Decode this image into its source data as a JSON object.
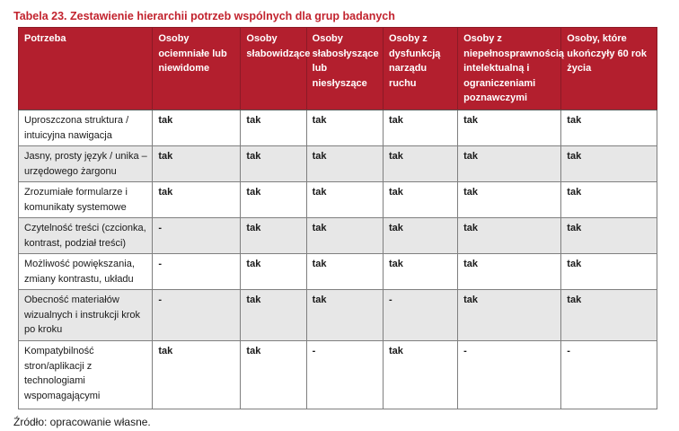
{
  "title": "Tabela 23. Zestawienie hierarchii potrzeb wspólnych dla grup badanych",
  "source": "Źródło: opracowanie własne.",
  "colors": {
    "title_red": "#c2232e",
    "header_bg": "#b31f2e",
    "header_divider": "#8c1a26",
    "row_alt_bg": "#e7e7e7",
    "cell_border": "#7f7f7f"
  },
  "table": {
    "headers": [
      "Potrzeba",
      "Osoby ociemniałe lub niewidome",
      "Osoby słabowidzące",
      "Osoby słabosłyszące lub niesłyszące",
      "Osoby z dysfunkcją narządu ruchu",
      "Osoby z niepełnosprawnością intelektualną i ograniczeniami poznawczymi",
      "Osoby, które ukończyły 60 rok życia"
    ],
    "rows": [
      {
        "need": "Uproszczona struktura / intuicyjna nawigacja",
        "values": [
          "tak",
          "tak",
          "tak",
          "tak",
          "tak",
          "tak"
        ]
      },
      {
        "need": "Jasny, prosty język / unika – urzędowego żargonu",
        "values": [
          "tak",
          "tak",
          "tak",
          "tak",
          "tak",
          "tak"
        ]
      },
      {
        "need": "Zrozumiałe formularze i komunikaty systemowe",
        "values": [
          "tak",
          "tak",
          "tak",
          "tak",
          "tak",
          "tak"
        ]
      },
      {
        "need": "Czytelność treści (czcionka, kontrast, podział treści)",
        "values": [
          "-",
          "tak",
          "tak",
          "tak",
          "tak",
          "tak"
        ]
      },
      {
        "need": "Możliwość powiększania, zmiany kontrastu, układu",
        "values": [
          "-",
          "tak",
          "tak",
          "tak",
          "tak",
          "tak"
        ]
      },
      {
        "need": "Obecność materiałów wizualnych i instrukcji krok po kroku",
        "values": [
          "-",
          "tak",
          "tak",
          "-",
          "tak",
          "tak"
        ]
      },
      {
        "need": "Kompatybilność stron/aplikacji z technologiami wspomagającymi",
        "values": [
          "tak",
          "tak",
          "-",
          "tak",
          "-",
          "-"
        ]
      }
    ]
  }
}
